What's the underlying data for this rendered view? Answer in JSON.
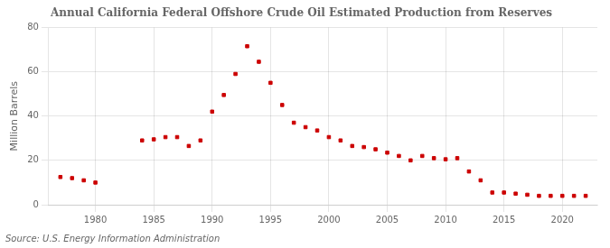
{
  "chart_data": {
    "type": "scatter",
    "title": "Annual California Federal Offshore Crude Oil Estimated Production from Reserves",
    "ylabel": "Million Barrels",
    "annotations": [
      "Source: U.S. Energy Information Administration"
    ],
    "x": [
      1977,
      1978,
      1979,
      1980,
      1984,
      1985,
      1986,
      1987,
      1988,
      1989,
      1990,
      1991,
      1992,
      1993,
      1994,
      1995,
      1996,
      1997,
      1998,
      1999,
      2000,
      2001,
      2002,
      2003,
      2004,
      2005,
      2006,
      2007,
      2008,
      2009,
      2010,
      2011,
      2012,
      2013,
      2014,
      2015,
      2016,
      2017,
      2018,
      2019,
      2020,
      2021,
      2022
    ],
    "values": [
      12.5,
      12.0,
      11.0,
      10.0,
      29.0,
      29.5,
      30.5,
      30.5,
      26.5,
      29.0,
      42.0,
      49.5,
      59.0,
      71.5,
      64.5,
      55.0,
      45.0,
      37.0,
      35.0,
      33.5,
      30.5,
      29.0,
      26.5,
      26.0,
      25.0,
      23.5,
      22.0,
      20.0,
      22.0,
      21.0,
      20.5,
      21.0,
      15.0,
      11.0,
      5.5,
      5.5,
      5.0,
      4.5,
      4.0,
      4.0,
      4.0,
      4.0,
      4.0
    ],
    "color": "#cc0000",
    "marker": "square",
    "xlim": [
      1976,
      2023
    ],
    "xticks": [
      1980,
      1985,
      1990,
      1995,
      2000,
      2005,
      2010,
      2015,
      2020
    ],
    "ylim": [
      0,
      80
    ],
    "yticks": [
      0,
      20,
      40,
      60,
      80
    ],
    "grid": true
  }
}
